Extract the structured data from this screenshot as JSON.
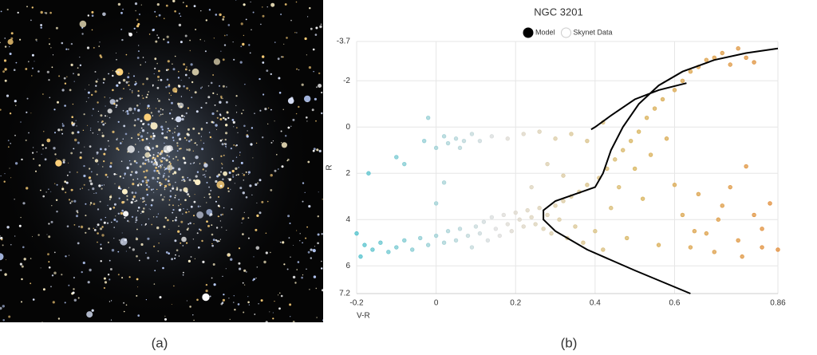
{
  "captions": [
    "(a)",
    "(b)"
  ],
  "chart_data": {
    "type": "scatter",
    "title": "NGC 3201",
    "xlabel": "V-R",
    "ylabel": "R",
    "xlim": [
      -0.2,
      0.86
    ],
    "xticks": [
      -0.2,
      0,
      0.2,
      0.4,
      0.6,
      0.86
    ],
    "ylim": [
      7.2,
      -3.7
    ],
    "yticks": [
      -3.7,
      -2,
      0,
      2,
      4,
      6,
      7.2
    ],
    "grid": true,
    "series": [
      {
        "name": "Model",
        "type": "line",
        "color": "#000000",
        "x": [
          0.64,
          0.5,
          0.38,
          0.3,
          0.27,
          0.27,
          0.3,
          0.35,
          0.4,
          0.42,
          0.44,
          0.47,
          0.51,
          0.56,
          0.62,
          0.7,
          0.78,
          0.86,
          null,
          0.39,
          0.4,
          0.44,
          0.5,
          0.56,
          0.63
        ],
        "values": [
          7.2,
          6.2,
          5.3,
          4.5,
          4.0,
          3.6,
          3.2,
          2.9,
          2.6,
          2.0,
          1.0,
          0.0,
          -1.0,
          -1.8,
          -2.4,
          -2.9,
          -3.2,
          -3.4,
          null,
          0.1,
          0.0,
          -0.5,
          -1.2,
          -1.6,
          -1.9
        ]
      },
      {
        "name": "Skynet Data",
        "type": "scatter",
        "colors": [
          "#4fc1cc",
          "#dedede",
          "#d8b45c",
          "#e28d3a"
        ],
        "x": [
          -0.2,
          -0.19,
          -0.18,
          -0.16,
          -0.14,
          -0.12,
          -0.1,
          -0.08,
          -0.06,
          -0.04,
          -0.02,
          0.0,
          0.02,
          0.03,
          0.05,
          0.06,
          0.08,
          0.09,
          0.1,
          0.11,
          0.12,
          0.13,
          0.14,
          0.15,
          0.16,
          0.17,
          0.18,
          0.19,
          0.2,
          0.21,
          0.22,
          0.23,
          0.24,
          0.25,
          0.26,
          0.27,
          0.28,
          0.29,
          0.3,
          0.31,
          0.32,
          0.33,
          0.34,
          0.35,
          0.36,
          0.37,
          0.38,
          0.4,
          0.41,
          0.42,
          0.43,
          0.44,
          0.45,
          0.46,
          0.47,
          0.48,
          0.49,
          0.5,
          0.51,
          0.52,
          0.53,
          0.54,
          0.55,
          0.56,
          0.57,
          0.58,
          0.6,
          0.62,
          0.64,
          0.66,
          0.68,
          0.7,
          0.72,
          0.74,
          0.76,
          0.78,
          0.8,
          -0.17,
          -0.1,
          -0.08,
          -0.03,
          -0.02,
          0.0,
          0.02,
          0.03,
          0.05,
          0.06,
          0.07,
          0.09,
          0.11,
          0.14,
          0.18,
          0.22,
          0.26,
          0.3,
          0.34,
          0.38,
          0.42,
          0.28,
          0.32,
          0.24,
          0.0,
          0.02,
          0.6,
          0.62,
          0.64,
          0.66,
          0.68,
          0.7,
          0.72,
          0.74,
          0.76,
          0.78,
          0.8,
          0.82,
          0.84,
          0.86,
          0.82,
          0.77,
          0.71,
          0.65
        ],
        "values": [
          4.6,
          5.6,
          5.1,
          5.3,
          5.0,
          5.4,
          5.2,
          4.9,
          5.3,
          4.8,
          5.1,
          4.7,
          5.0,
          4.5,
          4.9,
          4.4,
          4.7,
          5.2,
          4.3,
          4.6,
          4.1,
          4.9,
          3.9,
          4.4,
          4.7,
          3.8,
          4.2,
          4.5,
          3.7,
          4.0,
          4.3,
          3.6,
          3.9,
          4.2,
          3.5,
          4.4,
          3.8,
          4.6,
          3.4,
          4.0,
          3.2,
          4.8,
          3.0,
          4.3,
          2.8,
          5.0,
          2.5,
          4.5,
          2.2,
          5.3,
          1.8,
          3.5,
          1.4,
          2.6,
          1.0,
          4.8,
          0.6,
          1.8,
          0.2,
          3.1,
          -0.4,
          1.2,
          -0.8,
          5.1,
          -1.2,
          0.5,
          -1.6,
          -2.0,
          -2.4,
          -2.6,
          -2.9,
          -3.0,
          -3.2,
          -2.7,
          -3.4,
          -3.0,
          -2.8,
          2.0,
          1.3,
          1.6,
          0.6,
          -0.4,
          0.9,
          0.4,
          0.7,
          0.5,
          0.9,
          0.6,
          0.3,
          0.6,
          0.4,
          0.5,
          0.3,
          0.2,
          0.5,
          0.3,
          0.6,
          -0.2,
          1.6,
          2.1,
          2.6,
          3.3,
          2.4,
          2.5,
          3.8,
          5.2,
          2.9,
          4.6,
          5.4,
          3.4,
          2.6,
          4.9,
          1.7,
          3.8,
          5.2,
          3.3,
          5.3,
          4.4,
          5.6,
          4.0,
          4.5
        ]
      }
    ]
  }
}
